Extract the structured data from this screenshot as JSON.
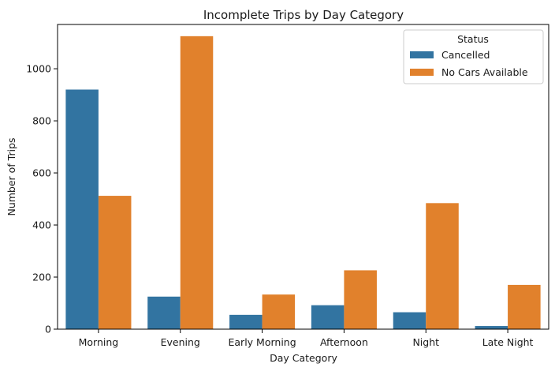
{
  "chart_data": {
    "type": "bar",
    "title": "Incomplete Trips by Day Category",
    "xlabel": "Day Category",
    "ylabel": "Number of Trips",
    "categories": [
      "Morning",
      "Evening",
      "Early Morning",
      "Afternoon",
      "Night",
      "Late Night"
    ],
    "series": [
      {
        "name": "Cancelled",
        "color": "#3274a1",
        "values": [
          920,
          125,
          55,
          92,
          65,
          12
        ]
      },
      {
        "name": "No Cars Available",
        "color": "#e1812c",
        "values": [
          512,
          1125,
          133,
          226,
          484,
          170
        ]
      }
    ],
    "ylim": [
      0,
      1170
    ],
    "yticks": [
      0,
      200,
      400,
      600,
      800,
      1000
    ],
    "legend": {
      "title": "Status",
      "placement": "top-right"
    },
    "grid": false
  }
}
